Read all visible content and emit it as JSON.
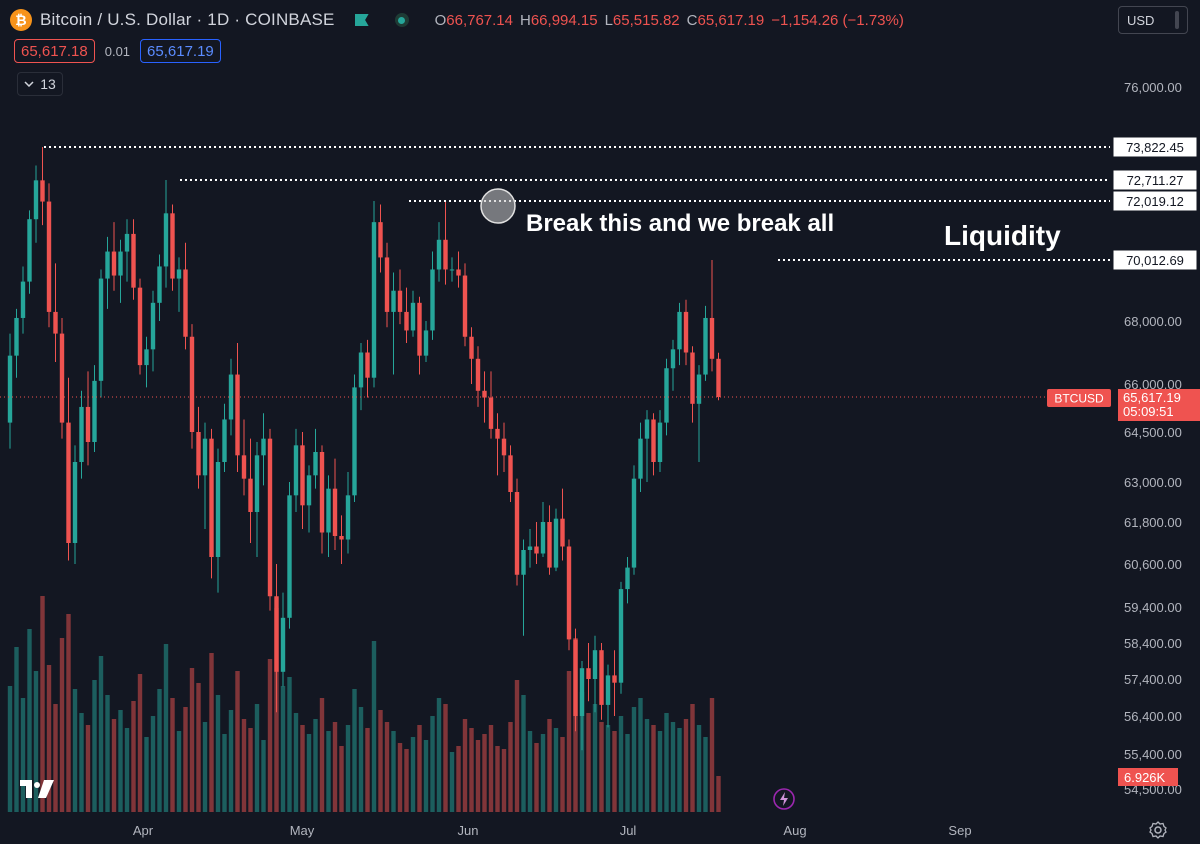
{
  "header": {
    "coin_glyph": "₿",
    "title": "Bitcoin / U.S. Dollar · 1D · COINBASE",
    "ohlc": {
      "o_label": "O",
      "o_value": "66,767.14",
      "h_label": "H",
      "h_value": "66,994.15",
      "l_label": "L",
      "l_value": "65,515.82",
      "c_label": "C",
      "c_value": "65,617.19",
      "change": "−1,154.26 (−1.73%)"
    },
    "sell_price": "65,617.18",
    "spread": "0.01",
    "buy_price": "65,617.19",
    "indicators_count": "13"
  },
  "currency_selector": "USD",
  "chart_data": {
    "type": "candlestick",
    "symbol": "BTCUSD",
    "y_axis_ticks": [
      "76,000.00",
      "68,000.00",
      "66,000.00",
      "64,500.00",
      "63,000.00",
      "61,800.00",
      "60,600.00",
      "59,400.00",
      "58,400.00",
      "57,400.00",
      "56,400.00",
      "55,400.00",
      "54,500.00"
    ],
    "x_axis_ticks": [
      "Apr",
      "May",
      "Jun",
      "Jul",
      "Aug",
      "Sep"
    ],
    "price_lines": [
      {
        "label": "73,822.45",
        "value": 73822.45
      },
      {
        "label": "72,711.27",
        "value": 72711.27
      },
      {
        "label": "72,019.12",
        "value": 72019.12
      },
      {
        "label": "70,012.69",
        "value": 70012.69
      }
    ],
    "last_price": {
      "symbol": "BTCUSD",
      "price": "65,617.19",
      "countdown": "05:09:51",
      "value": 65617.19
    },
    "volume_label": "6.926K",
    "annotations": [
      "Break this and we break all",
      "Liquidity"
    ],
    "colors": {
      "up": "#26a69a",
      "down": "#ef5350",
      "background": "#131722"
    },
    "candles": [
      {
        "o": 64800,
        "h": 67600,
        "l": 64000,
        "c": 66900
      },
      {
        "o": 66900,
        "h": 68400,
        "l": 66200,
        "c": 68100
      },
      {
        "o": 68100,
        "h": 69800,
        "l": 67600,
        "c": 69300
      },
      {
        "o": 69300,
        "h": 71700,
        "l": 68900,
        "c": 71400
      },
      {
        "o": 71400,
        "h": 73200,
        "l": 70600,
        "c": 72700
      },
      {
        "o": 72700,
        "h": 73822,
        "l": 71200,
        "c": 72000
      },
      {
        "o": 72000,
        "h": 72600,
        "l": 67800,
        "c": 68300
      },
      {
        "o": 68300,
        "h": 69900,
        "l": 66700,
        "c": 67600
      },
      {
        "o": 67600,
        "h": 68100,
        "l": 64300,
        "c": 64800
      },
      {
        "o": 64800,
        "h": 66200,
        "l": 60700,
        "c": 61200
      },
      {
        "o": 61200,
        "h": 64100,
        "l": 60600,
        "c": 63600
      },
      {
        "o": 63600,
        "h": 65800,
        "l": 63100,
        "c": 65300
      },
      {
        "o": 65300,
        "h": 66400,
        "l": 63500,
        "c": 64200
      },
      {
        "o": 64200,
        "h": 66600,
        "l": 63900,
        "c": 66100
      },
      {
        "o": 66100,
        "h": 69700,
        "l": 65600,
        "c": 69400
      },
      {
        "o": 69400,
        "h": 70800,
        "l": 68400,
        "c": 70300
      },
      {
        "o": 70300,
        "h": 71300,
        "l": 69000,
        "c": 69500
      },
      {
        "o": 69500,
        "h": 70700,
        "l": 68600,
        "c": 70300
      },
      {
        "o": 70300,
        "h": 71400,
        "l": 69300,
        "c": 70900
      },
      {
        "o": 70900,
        "h": 71400,
        "l": 68700,
        "c": 69100
      },
      {
        "o": 69100,
        "h": 69400,
        "l": 66300,
        "c": 66600
      },
      {
        "o": 66600,
        "h": 67500,
        "l": 65900,
        "c": 67100
      },
      {
        "o": 67100,
        "h": 69000,
        "l": 66400,
        "c": 68600
      },
      {
        "o": 68600,
        "h": 70200,
        "l": 68000,
        "c": 69800
      },
      {
        "o": 69800,
        "h": 72711,
        "l": 69100,
        "c": 71600
      },
      {
        "o": 71600,
        "h": 71900,
        "l": 69000,
        "c": 69400
      },
      {
        "o": 69400,
        "h": 70100,
        "l": 68300,
        "c": 69700
      },
      {
        "o": 69700,
        "h": 70600,
        "l": 67100,
        "c": 67500
      },
      {
        "o": 67500,
        "h": 67900,
        "l": 64000,
        "c": 64500
      },
      {
        "o": 64500,
        "h": 65300,
        "l": 62800,
        "c": 63200
      },
      {
        "o": 63200,
        "h": 64800,
        "l": 61600,
        "c": 64300
      },
      {
        "o": 64300,
        "h": 64600,
        "l": 60200,
        "c": 60800
      },
      {
        "o": 60800,
        "h": 64000,
        "l": 59800,
        "c": 63600
      },
      {
        "o": 63600,
        "h": 65400,
        "l": 63300,
        "c": 64900
      },
      {
        "o": 64900,
        "h": 66800,
        "l": 64400,
        "c": 66300
      },
      {
        "o": 66300,
        "h": 67300,
        "l": 63300,
        "c": 63800
      },
      {
        "o": 63800,
        "h": 64900,
        "l": 62600,
        "c": 63100
      },
      {
        "o": 63100,
        "h": 64300,
        "l": 61200,
        "c": 62100
      },
      {
        "o": 62100,
        "h": 64200,
        "l": 60800,
        "c": 63800
      },
      {
        "o": 63800,
        "h": 65100,
        "l": 62900,
        "c": 64300
      },
      {
        "o": 64300,
        "h": 64600,
        "l": 59300,
        "c": 59700
      },
      {
        "o": 59700,
        "h": 60600,
        "l": 56500,
        "c": 57600
      },
      {
        "o": 57600,
        "h": 59800,
        "l": 57200,
        "c": 59100
      },
      {
        "o": 59100,
        "h": 63000,
        "l": 58800,
        "c": 62600
      },
      {
        "o": 62600,
        "h": 64600,
        "l": 62100,
        "c": 64100
      },
      {
        "o": 64100,
        "h": 64500,
        "l": 61600,
        "c": 62300
      },
      {
        "o": 62300,
        "h": 63500,
        "l": 61500,
        "c": 63200
      },
      {
        "o": 63200,
        "h": 64600,
        "l": 62800,
        "c": 63900
      },
      {
        "o": 63900,
        "h": 64100,
        "l": 60900,
        "c": 61500
      },
      {
        "o": 61500,
        "h": 63200,
        "l": 60800,
        "c": 62800
      },
      {
        "o": 62800,
        "h": 63700,
        "l": 61000,
        "c": 61400
      },
      {
        "o": 61400,
        "h": 62000,
        "l": 60600,
        "c": 61300
      },
      {
        "o": 61300,
        "h": 63300,
        "l": 60900,
        "c": 62600
      },
      {
        "o": 62600,
        "h": 66300,
        "l": 62400,
        "c": 65900
      },
      {
        "o": 65900,
        "h": 67300,
        "l": 65200,
        "c": 67000
      },
      {
        "o": 67000,
        "h": 67400,
        "l": 65600,
        "c": 66200
      },
      {
        "o": 66200,
        "h": 72019,
        "l": 65900,
        "c": 71300
      },
      {
        "o": 71300,
        "h": 71900,
        "l": 69600,
        "c": 70100
      },
      {
        "o": 70100,
        "h": 70600,
        "l": 67800,
        "c": 68300
      },
      {
        "o": 68300,
        "h": 69600,
        "l": 66300,
        "c": 69000
      },
      {
        "o": 69000,
        "h": 69700,
        "l": 67900,
        "c": 68300
      },
      {
        "o": 68300,
        "h": 69100,
        "l": 67300,
        "c": 67700
      },
      {
        "o": 67700,
        "h": 69000,
        "l": 67500,
        "c": 68600
      },
      {
        "o": 68600,
        "h": 68800,
        "l": 66300,
        "c": 66900
      },
      {
        "o": 66900,
        "h": 68000,
        "l": 66700,
        "c": 67700
      },
      {
        "o": 67700,
        "h": 70300,
        "l": 67400,
        "c": 69700
      },
      {
        "o": 69700,
        "h": 71300,
        "l": 69300,
        "c": 70700
      },
      {
        "o": 70700,
        "h": 72000,
        "l": 69200,
        "c": 69700
      },
      {
        "o": 69700,
        "h": 70100,
        "l": 69300,
        "c": 69700
      },
      {
        "o": 69700,
        "h": 70300,
        "l": 69100,
        "c": 69500
      },
      {
        "o": 69500,
        "h": 69900,
        "l": 67200,
        "c": 67500
      },
      {
        "o": 67500,
        "h": 67800,
        "l": 66000,
        "c": 66800
      },
      {
        "o": 66800,
        "h": 67200,
        "l": 65300,
        "c": 65800
      },
      {
        "o": 65800,
        "h": 66400,
        "l": 64800,
        "c": 65600
      },
      {
        "o": 65600,
        "h": 66400,
        "l": 64300,
        "c": 64600
      },
      {
        "o": 64600,
        "h": 65100,
        "l": 63200,
        "c": 64300
      },
      {
        "o": 64300,
        "h": 64800,
        "l": 63300,
        "c": 63800
      },
      {
        "o": 63800,
        "h": 64100,
        "l": 62400,
        "c": 62700
      },
      {
        "o": 62700,
        "h": 63100,
        "l": 60000,
        "c": 60300
      },
      {
        "o": 60300,
        "h": 61300,
        "l": 58600,
        "c": 61000
      },
      {
        "o": 61000,
        "h": 61600,
        "l": 60500,
        "c": 61100
      },
      {
        "o": 61100,
        "h": 61800,
        "l": 60600,
        "c": 60900
      },
      {
        "o": 60900,
        "h": 62400,
        "l": 60800,
        "c": 61800
      },
      {
        "o": 61800,
        "h": 62300,
        "l": 60300,
        "c": 60500
      },
      {
        "o": 60500,
        "h": 62200,
        "l": 60400,
        "c": 61900
      },
      {
        "o": 61900,
        "h": 62800,
        "l": 60700,
        "c": 61100
      },
      {
        "o": 61100,
        "h": 61300,
        "l": 58200,
        "c": 58500
      },
      {
        "o": 58500,
        "h": 58800,
        "l": 56000,
        "c": 56400
      },
      {
        "o": 56400,
        "h": 57900,
        "l": 55500,
        "c": 57700
      },
      {
        "o": 57700,
        "h": 58400,
        "l": 56800,
        "c": 57400
      },
      {
        "o": 57400,
        "h": 58600,
        "l": 56500,
        "c": 58200
      },
      {
        "o": 58200,
        "h": 58400,
        "l": 56300,
        "c": 56700
      },
      {
        "o": 56700,
        "h": 57800,
        "l": 56100,
        "c": 57500
      },
      {
        "o": 57500,
        "h": 58200,
        "l": 56400,
        "c": 57300
      },
      {
        "o": 57300,
        "h": 60100,
        "l": 57000,
        "c": 59900
      },
      {
        "o": 59900,
        "h": 60800,
        "l": 59500,
        "c": 60500
      },
      {
        "o": 60500,
        "h": 63500,
        "l": 60300,
        "c": 63100
      },
      {
        "o": 63100,
        "h": 64800,
        "l": 62700,
        "c": 64300
      },
      {
        "o": 64300,
        "h": 65200,
        "l": 63000,
        "c": 64900
      },
      {
        "o": 64900,
        "h": 65100,
        "l": 63200,
        "c": 63600
      },
      {
        "o": 63600,
        "h": 65200,
        "l": 63300,
        "c": 64800
      },
      {
        "o": 64800,
        "h": 66800,
        "l": 64400,
        "c": 66500
      },
      {
        "o": 66500,
        "h": 67400,
        "l": 65800,
        "c": 67100
      },
      {
        "o": 67100,
        "h": 68600,
        "l": 66600,
        "c": 68300
      },
      {
        "o": 68300,
        "h": 68700,
        "l": 66600,
        "c": 67000
      },
      {
        "o": 67000,
        "h": 67200,
        "l": 64800,
        "c": 65400
      },
      {
        "o": 65400,
        "h": 66600,
        "l": 63600,
        "c": 66300
      },
      {
        "o": 66300,
        "h": 68500,
        "l": 66100,
        "c": 68100
      },
      {
        "o": 68100,
        "h": 70012,
        "l": 66400,
        "c": 66800
      },
      {
        "o": 66800,
        "h": 66994,
        "l": 65515,
        "c": 65617
      }
    ],
    "volume": [
      0.42,
      0.55,
      0.38,
      0.61,
      0.47,
      0.72,
      0.49,
      0.36,
      0.58,
      0.66,
      0.41,
      0.33,
      0.29,
      0.44,
      0.52,
      0.39,
      0.31,
      0.34,
      0.28,
      0.37,
      0.46,
      0.25,
      0.32,
      0.41,
      0.56,
      0.38,
      0.27,
      0.35,
      0.48,
      0.43,
      0.3,
      0.53,
      0.39,
      0.26,
      0.34,
      0.47,
      0.31,
      0.28,
      0.36,
      0.24,
      0.51,
      0.68,
      0.42,
      0.45,
      0.33,
      0.29,
      0.26,
      0.31,
      0.38,
      0.27,
      0.3,
      0.22,
      0.29,
      0.41,
      0.35,
      0.28,
      0.57,
      0.34,
      0.3,
      0.27,
      0.23,
      0.21,
      0.25,
      0.29,
      0.24,
      0.32,
      0.38,
      0.36,
      0.2,
      0.22,
      0.31,
      0.28,
      0.24,
      0.26,
      0.29,
      0.22,
      0.21,
      0.3,
      0.44,
      0.39,
      0.27,
      0.23,
      0.26,
      0.31,
      0.28,
      0.25,
      0.47,
      0.58,
      0.4,
      0.33,
      0.36,
      0.3,
      0.29,
      0.27,
      0.32,
      0.26,
      0.35,
      0.38,
      0.31,
      0.29,
      0.27,
      0.33,
      0.3,
      0.28,
      0.31,
      0.36,
      0.29,
      0.25,
      0.38,
      0.12
    ]
  }
}
